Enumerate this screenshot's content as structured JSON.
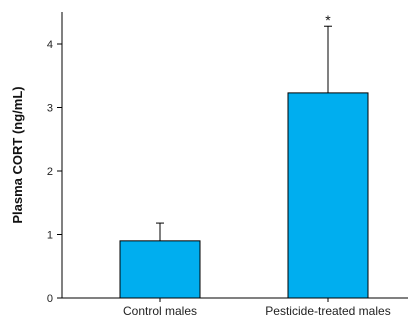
{
  "chart_data": {
    "type": "bar",
    "categories": [
      "Control males",
      "Pesticide-treated males"
    ],
    "values": [
      0.9,
      3.23
    ],
    "error_upper": [
      1.18,
      4.28
    ],
    "annotations": [
      "",
      "*"
    ],
    "ylabel": "Plasma CORT (ng/mL)",
    "xlabel": "",
    "ylim": [
      0,
      4.5
    ],
    "yticks": [
      0,
      1,
      2,
      3,
      4
    ],
    "grid": false,
    "bar_color": "#00aeef",
    "bar_edge_color": "#000000"
  }
}
